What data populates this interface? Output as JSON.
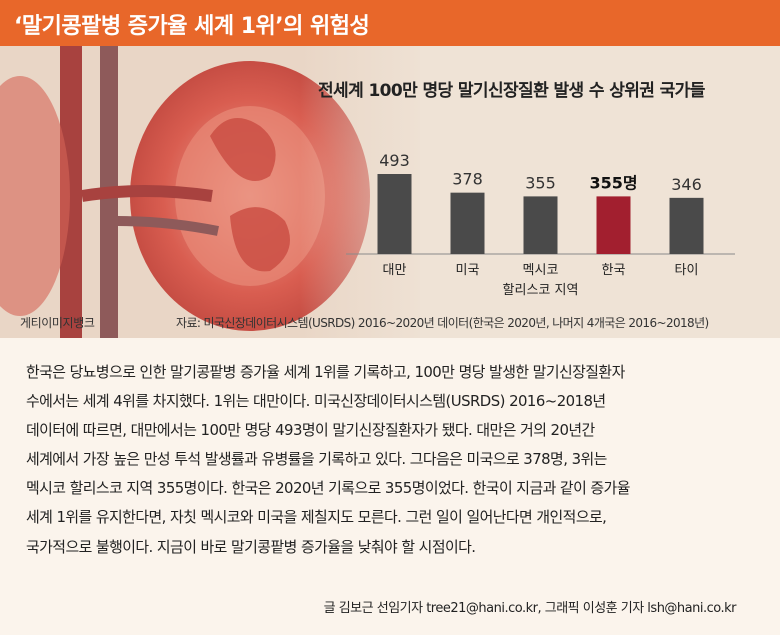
{
  "header": {
    "title": "‘말기콩팥병 증가율 세계 1위’의 위험성"
  },
  "hero": {
    "credit": "게티이미지뱅크",
    "source": "자료: 미국신장데이터시스템(USRDS) 2016~2020년 데이터(한국은 2020년, 나머지 4개국은 2016~2018년)"
  },
  "chart_data": {
    "type": "bar",
    "title": "전세계 100만 명당 말기신장질환 발생 수 상위권 국가들",
    "categories": [
      {
        "label": "대만",
        "label2": ""
      },
      {
        "label": "미국",
        "label2": ""
      },
      {
        "label": "멕시코",
        "label2": "할리스코 지역"
      },
      {
        "label": "한국",
        "label2": ""
      },
      {
        "label": "타이",
        "label2": ""
      }
    ],
    "values": [
      493,
      378,
      355,
      355,
      346
    ],
    "value_labels": [
      "493",
      "378",
      "355",
      "355명",
      "346"
    ],
    "highlight_index": 3,
    "ylim": [
      0,
      500
    ],
    "colors": {
      "bar": "#4a4a4a",
      "highlight": "#a21f2f"
    }
  },
  "article": {
    "lines": [
      "한국은 당뇨병으로 인한 말기콩팥병 증가율 세계 1위를 기록하고, 100만 명당 발생한 말기신장질환자",
      "수에서는 세계 4위를 차지했다. 1위는 대만이다. 미국신장데이터시스템(USRDS) 2016~2018년",
      "데이터에 따르면, 대만에서는 100만 명당 493명이 말기신장질환자가 됐다. 대만은 거의 20년간",
      "세계에서 가장 높은 만성 투석 발생률과 유병률을 기록하고 있다. 그다음은 미국으로 378명, 3위는",
      "멕시코 할리스코 지역 355명이다. 한국은 2020년 기록으로 355명이었다. 한국이 지금과 같이 증가율",
      "세계 1위를 유지한다면, 자칫 멕시코와 미국을 제칠지도 모른다. 그런 일이 일어난다면 개인적으로,",
      "국가적으로 불행이다. 지금이 바로 말기콩팥병 증가율을 낮춰야 할 시점이다."
    ],
    "byline": "글 김보근 선임기자 tree21@hani.co.kr, 그래픽 이성훈 기자 lsh@hani.co.kr"
  }
}
